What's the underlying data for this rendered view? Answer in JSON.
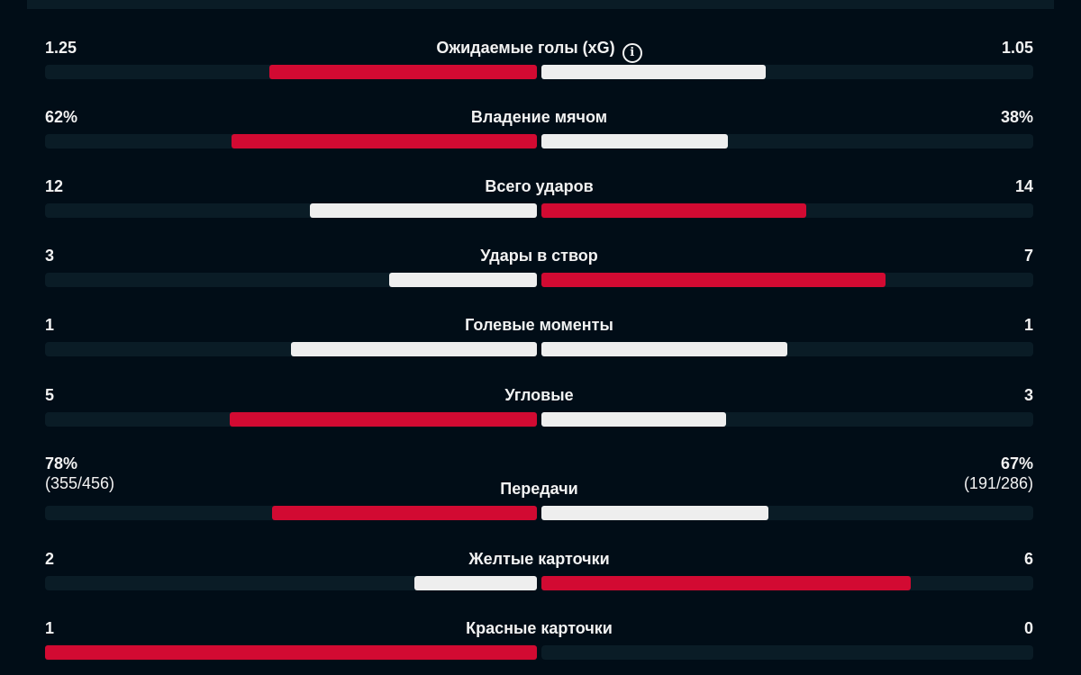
{
  "colors": {
    "background": "#010d17",
    "track": "#0a1c26",
    "highlight": "#d20a32",
    "normal": "#eeeeee"
  },
  "stats": [
    {
      "label": "Ожидаемые голы (xG)",
      "info_icon": "info-icon",
      "home": "1.25",
      "away": "1.05",
      "home_value": 1.25,
      "away_value": 1.05
    },
    {
      "label": "Владение мячом",
      "home": "62%",
      "away": "38%",
      "home_value": 62,
      "away_value": 38
    },
    {
      "label": "Всего ударов",
      "home": "12",
      "away": "14",
      "home_value": 12,
      "away_value": 14
    },
    {
      "label": "Удары в створ",
      "home": "3",
      "away": "7",
      "home_value": 3,
      "away_value": 7
    },
    {
      "label": "Голевые моменты",
      "home": "1",
      "away": "1",
      "home_value": 1,
      "away_value": 1
    },
    {
      "label": "Угловые",
      "home": "5",
      "away": "3",
      "home_value": 5,
      "away_value": 3
    },
    {
      "label": "Передачи",
      "home": "78%",
      "home_sub": "(355/456)",
      "away": "67%",
      "away_sub": "(191/286)",
      "home_value": 78,
      "away_value": 67
    },
    {
      "label": "Желтые карточки",
      "home": "2",
      "away": "6",
      "home_value": 2,
      "away_value": 6
    },
    {
      "label": "Красные карточки",
      "home": "1",
      "away": "0",
      "home_value": 1,
      "away_value": 0
    }
  ]
}
